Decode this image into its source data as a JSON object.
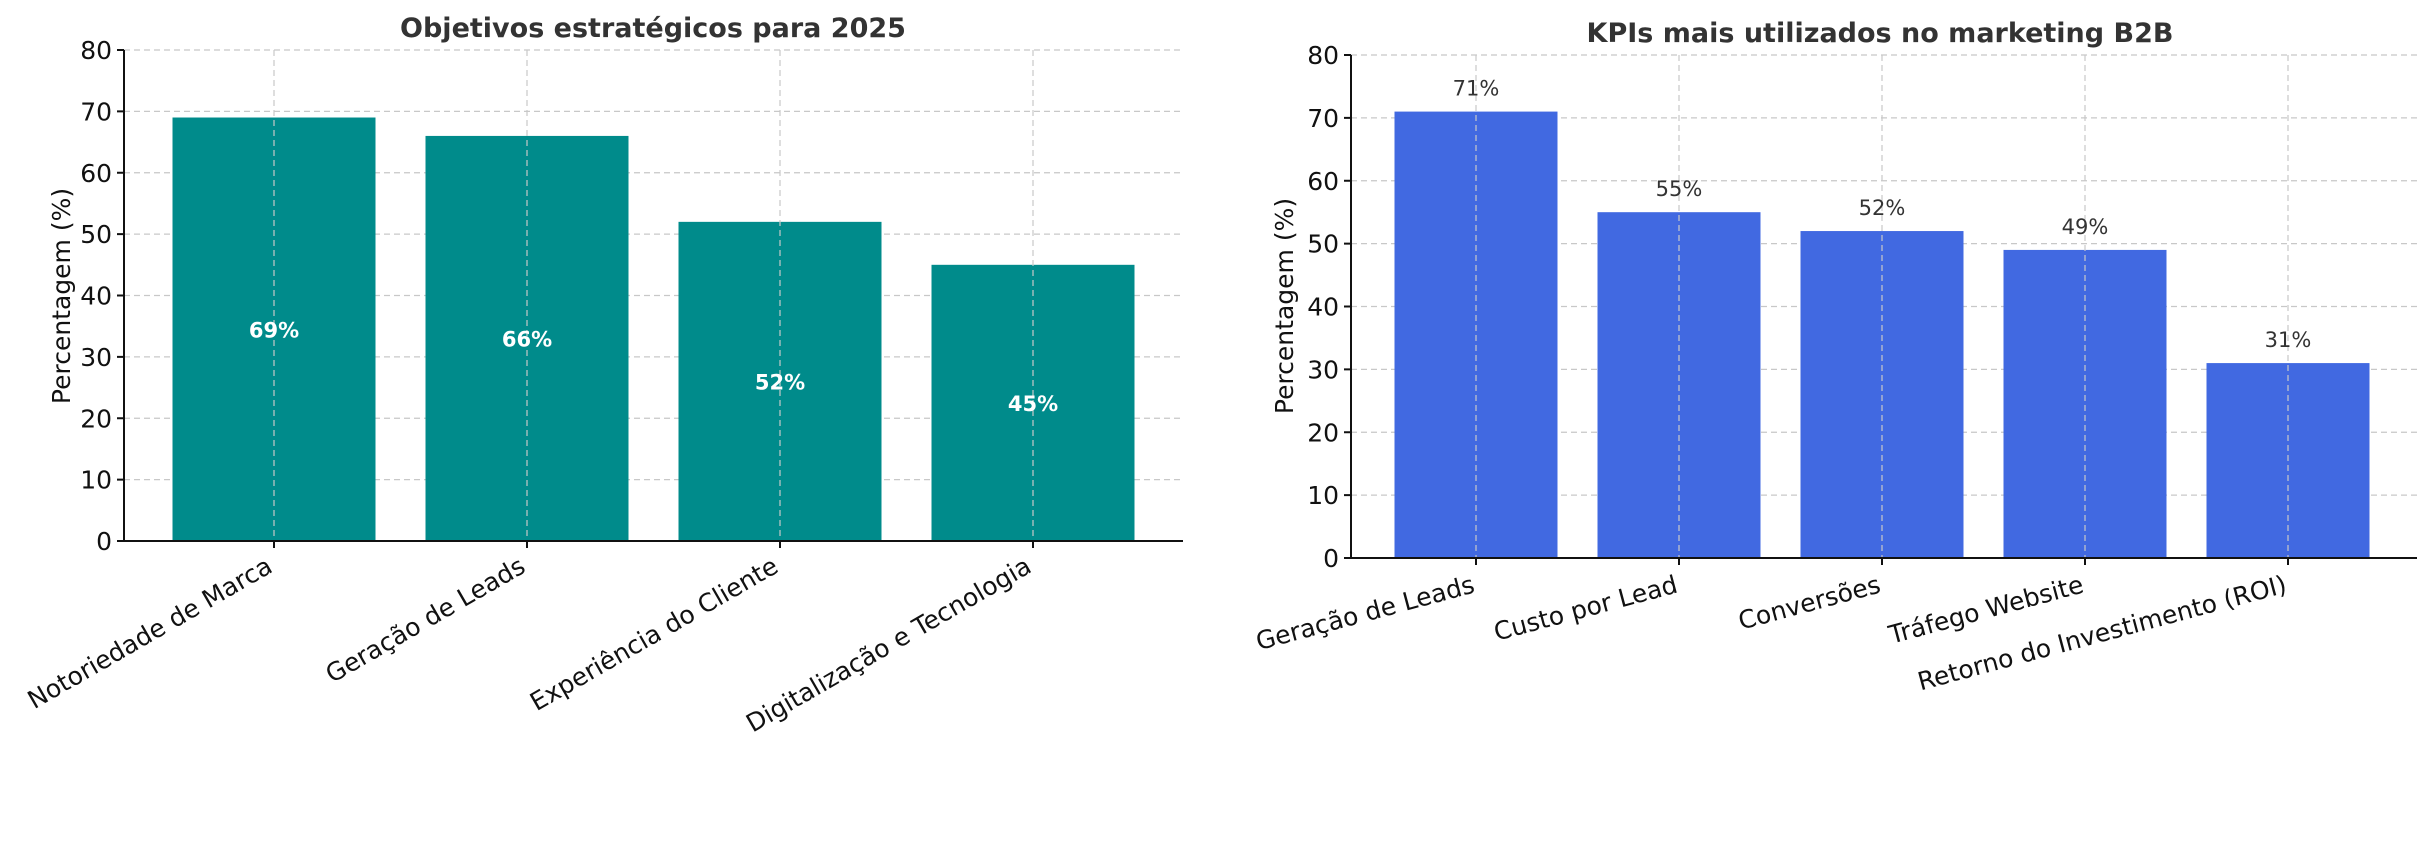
{
  "chart_data": [
    {
      "type": "bar",
      "title": "Objetivos estratégicos para 2025",
      "xlabel": "",
      "ylabel": "Percentagem (%)",
      "ylim": [
        0,
        80
      ],
      "yticks": [
        "0",
        "10",
        "20",
        "30",
        "40",
        "50",
        "60",
        "70",
        "80"
      ],
      "categories": [
        "Notoriedade de Marca",
        "Geração de Leads",
        "Experiência do Cliente",
        "Digitalização e Tecnologia"
      ],
      "values": [
        69,
        66,
        52,
        45
      ],
      "data_labels": [
        "69%",
        "66%",
        "52%",
        "45%"
      ],
      "label_position": "inside",
      "color": "#008b8b",
      "grid": true
    },
    {
      "type": "bar",
      "title": "KPIs mais utilizados no marketing B2B",
      "xlabel": "",
      "ylabel": "Percentagem (%)",
      "ylim": [
        0,
        80
      ],
      "yticks": [
        "0",
        "10",
        "20",
        "30",
        "40",
        "50",
        "60",
        "70",
        "80"
      ],
      "categories": [
        "Geração de Leads",
        "Custo por Lead",
        "Conversões",
        "Tráfego Website",
        "Retorno do Investimento (ROI)"
      ],
      "values": [
        71,
        55,
        52,
        49,
        31
      ],
      "data_labels": [
        "71%",
        "55%",
        "52%",
        "49%",
        "31%"
      ],
      "label_position": "above",
      "color": "#4169e1",
      "grid": true
    }
  ]
}
